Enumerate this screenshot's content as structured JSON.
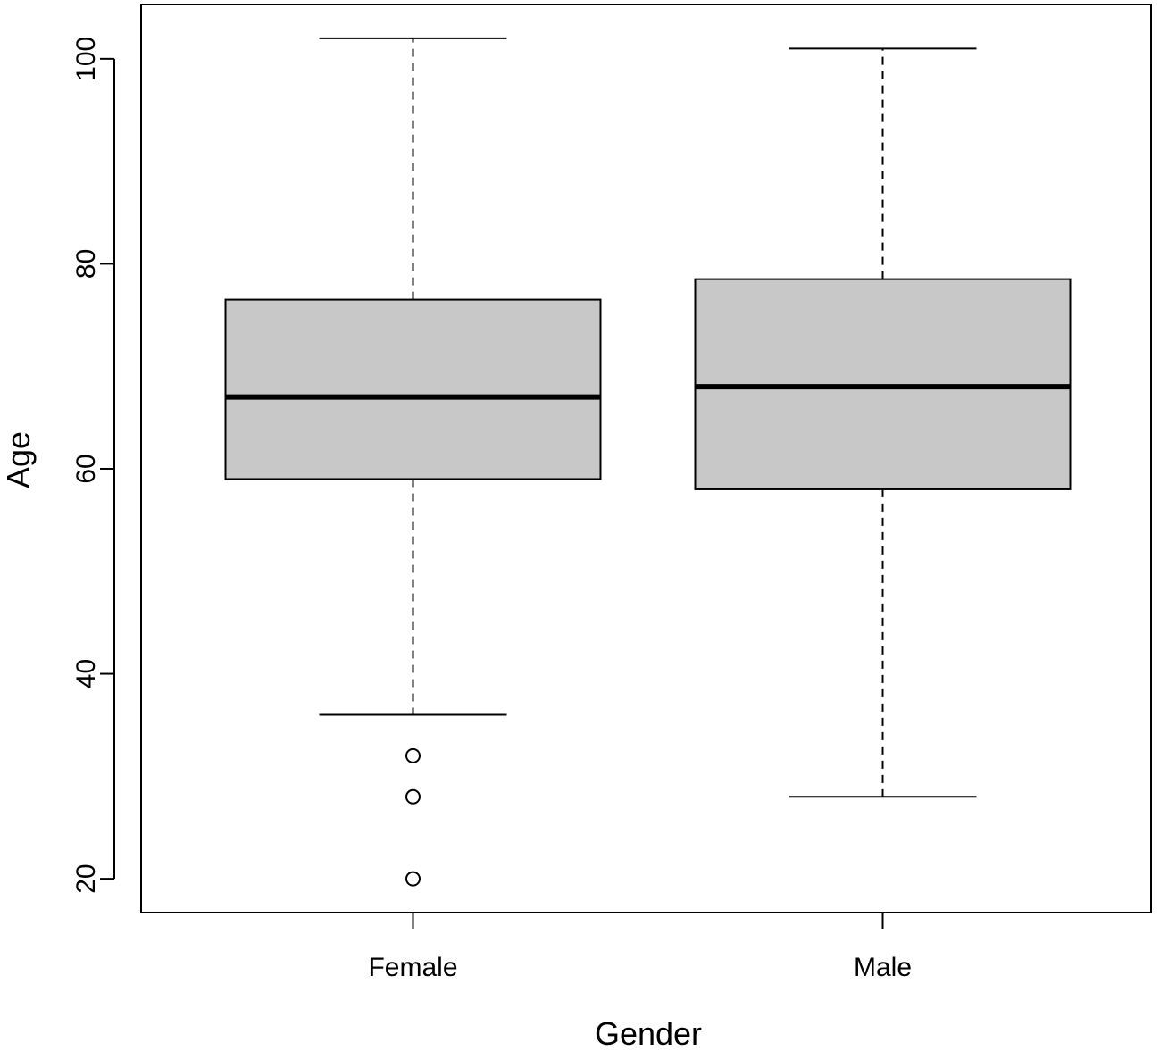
{
  "chart_data": {
    "type": "boxplot",
    "title": "",
    "xlabel": "Gender",
    "ylabel": "Age",
    "ylim": [
      16.7,
      105.3
    ],
    "yticks": [
      20,
      40,
      60,
      80,
      100
    ],
    "grid": false,
    "legend": "none",
    "colors": {
      "box_fill": "#c8c8c8",
      "stroke": "#000000",
      "background": "#ffffff"
    },
    "categories": [
      "Female",
      "Male"
    ],
    "boxes": [
      {
        "category": "Female",
        "whisker_low": 36,
        "q1": 59,
        "median": 67,
        "q3": 76.5,
        "whisker_high": 102,
        "outliers": [
          32,
          28,
          20
        ]
      },
      {
        "category": "Male",
        "whisker_low": 28,
        "q1": 58,
        "median": 68,
        "q3": 78.5,
        "whisker_high": 101,
        "outliers": []
      }
    ]
  }
}
